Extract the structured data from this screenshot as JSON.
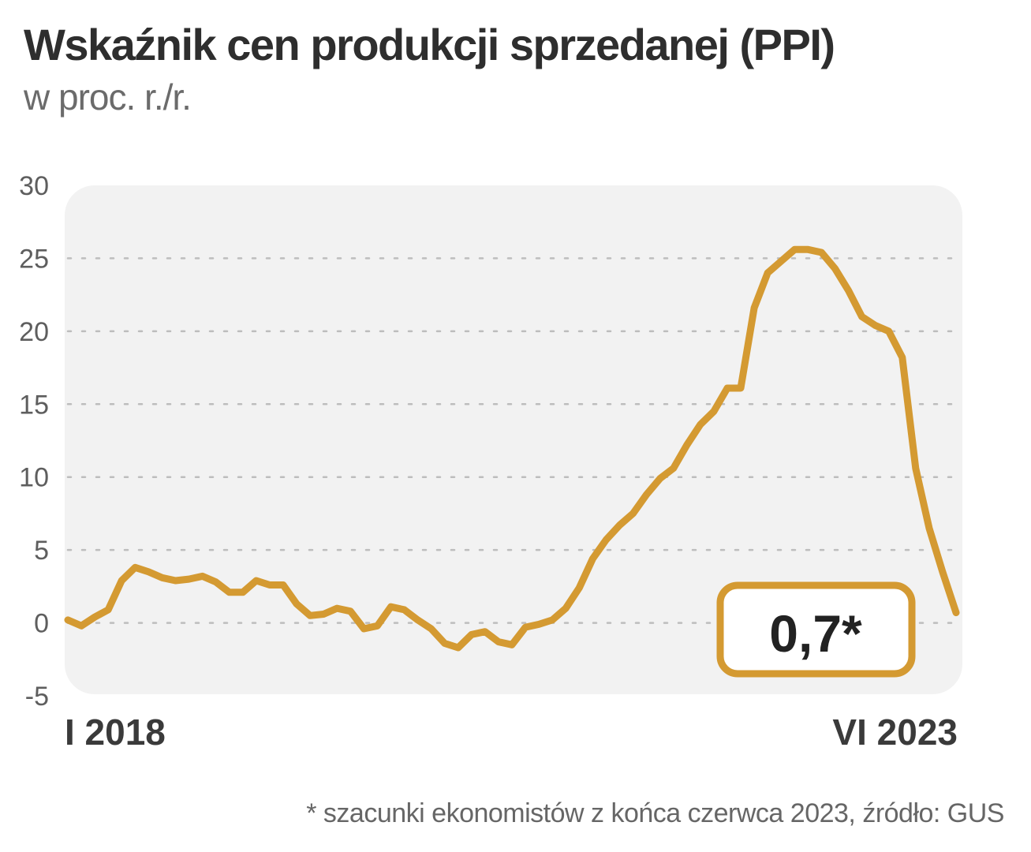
{
  "chart_data": {
    "type": "line",
    "title": "Wskaźnik cen produkcji sprzedanej (PPI)",
    "subtitle": "w proc. r./r.",
    "x_start_label": "I 2018",
    "x_end_label": "VI 2023",
    "ylim": [
      -5,
      30
    ],
    "yticks": [
      -5,
      0,
      5,
      10,
      15,
      20,
      25,
      30
    ],
    "grid": true,
    "series": [
      {
        "color": "#d49a32",
        "values": [
          0.2,
          -0.2,
          0.4,
          0.9,
          2.9,
          3.8,
          3.5,
          3.1,
          2.9,
          3.0,
          3.2,
          2.8,
          2.1,
          2.1,
          2.9,
          2.6,
          2.6,
          1.3,
          0.5,
          0.6,
          1.0,
          0.8,
          -0.4,
          -0.2,
          1.1,
          0.9,
          0.2,
          -0.4,
          -1.4,
          -1.7,
          -0.8,
          -0.6,
          -1.3,
          -1.5,
          -0.3,
          -0.1,
          0.2,
          1.0,
          2.4,
          4.4,
          5.7,
          6.7,
          7.5,
          8.8,
          9.9,
          10.6,
          12.2,
          13.6,
          14.5,
          16.1,
          16.1,
          21.6,
          24.0,
          24.8,
          25.6,
          25.6,
          25.4,
          24.3,
          22.8,
          21.0,
          20.4,
          20.0,
          18.2,
          10.6,
          6.5,
          3.5,
          0.7
        ]
      }
    ],
    "callout": {
      "text": "0,7*",
      "value": 0.7,
      "border_color": "#d49a32"
    },
    "footnote": "* szacunki ekonomistów z końca czerwca 2023, źródło: GUS"
  }
}
